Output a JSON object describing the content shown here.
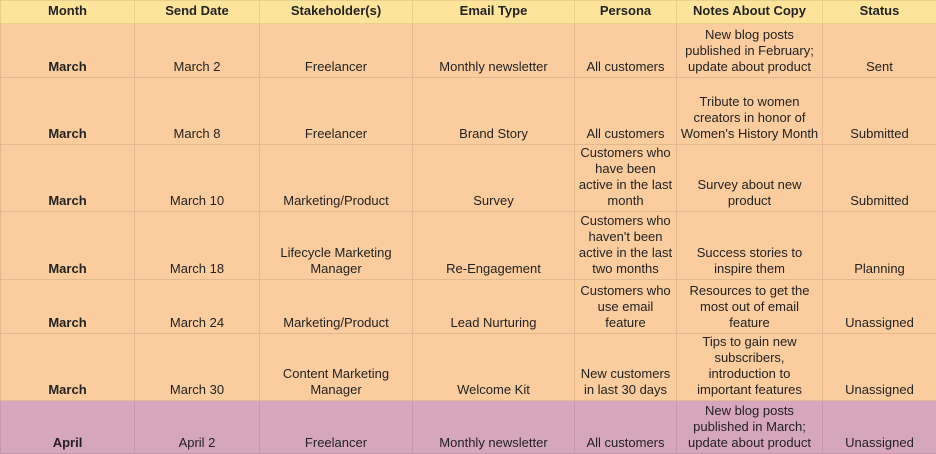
{
  "columns": [
    "Month",
    "Send Date",
    "Stakeholder(s)",
    "Email Type",
    "Persona",
    "Notes About Copy",
    "Status"
  ],
  "rows": [
    {
      "month": "March",
      "send_date": "March 2",
      "stakeholder": "Freelancer",
      "email_type": "Monthly newsletter",
      "persona": "All customers",
      "notes": "New blog posts published in February; update about product",
      "status": "Sent"
    },
    {
      "month": "March",
      "send_date": "March 8",
      "stakeholder": "Freelancer",
      "email_type": "Brand Story",
      "persona": "All customers",
      "notes": "Tribute to women creators in honor of Women's History Month",
      "status": "Submitted"
    },
    {
      "month": "March",
      "send_date": "March 10",
      "stakeholder": "Marketing/Product",
      "email_type": "Survey",
      "persona": "Customers who have been active in the last month",
      "notes": "Survey about new product",
      "status": "Submitted"
    },
    {
      "month": "March",
      "send_date": "March 18",
      "stakeholder": "Lifecycle Marketing Manager",
      "email_type": "Re-Engagement",
      "persona": "Customers who haven't been active in the last two months",
      "notes": "Success stories to inspire them",
      "status": "Planning"
    },
    {
      "month": "March",
      "send_date": "March 24",
      "stakeholder": "Marketing/Product",
      "email_type": "Lead Nurturing",
      "persona": "Customers who use email feature",
      "notes": "Resources to get the most out of email feature",
      "status": "Unassigned"
    },
    {
      "month": "March",
      "send_date": "March 30",
      "stakeholder": "Content Marketing Manager",
      "email_type": "Welcome Kit",
      "persona": "New customers in last 30 days",
      "notes": "Tips to gain new subscribers, introduction to important features",
      "status": "Unassigned"
    },
    {
      "month": "April",
      "send_date": "April 2",
      "stakeholder": "Freelancer",
      "email_type": "Monthly newsletter",
      "persona": "All customers",
      "notes": "New blog posts published in March; update about product",
      "status": "Unassigned"
    }
  ],
  "colors": {
    "header": "#fde49b",
    "march_rows": "#fbcd9e",
    "april_rows": "#d5a6bd"
  }
}
